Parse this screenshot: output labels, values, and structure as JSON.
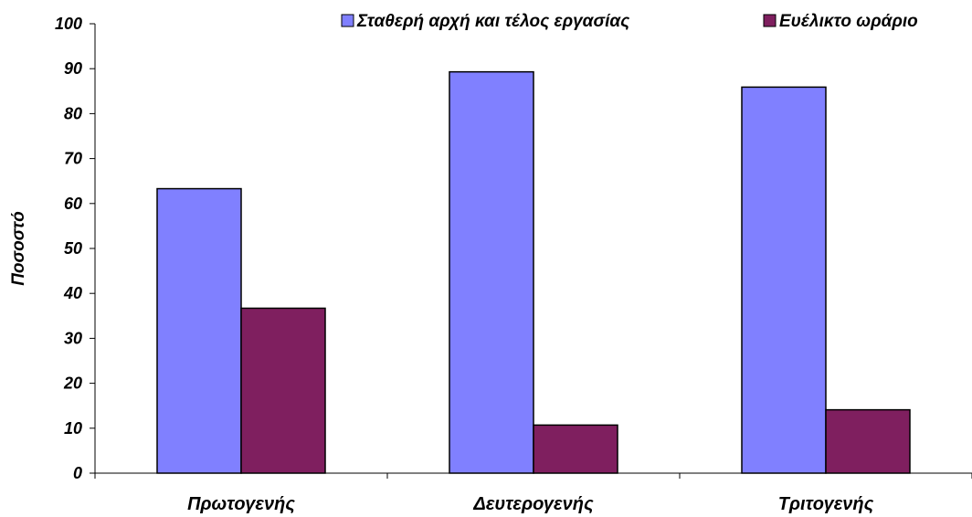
{
  "chart_data": {
    "type": "bar",
    "categories": [
      "Πρωτογενής",
      "Δευτερογενής",
      "Τριτογενής"
    ],
    "series": [
      {
        "name": "Σταθερή αρχή και τέλος εργασίας",
        "color": "#8080FF",
        "values": [
          63.3,
          89.3,
          85.9
        ]
      },
      {
        "name": "Ευέλικτο ωράριο",
        "color": "#7F1F5F",
        "values": [
          36.7,
          10.7,
          14.1
        ]
      }
    ],
    "ylabel": "Ποσοστό",
    "xlabel": "",
    "ylim": [
      0,
      100
    ],
    "yticks": [
      0,
      10,
      20,
      30,
      40,
      50,
      60,
      70,
      80,
      90,
      100
    ],
    "grid": false,
    "legend_position": "top-right"
  }
}
